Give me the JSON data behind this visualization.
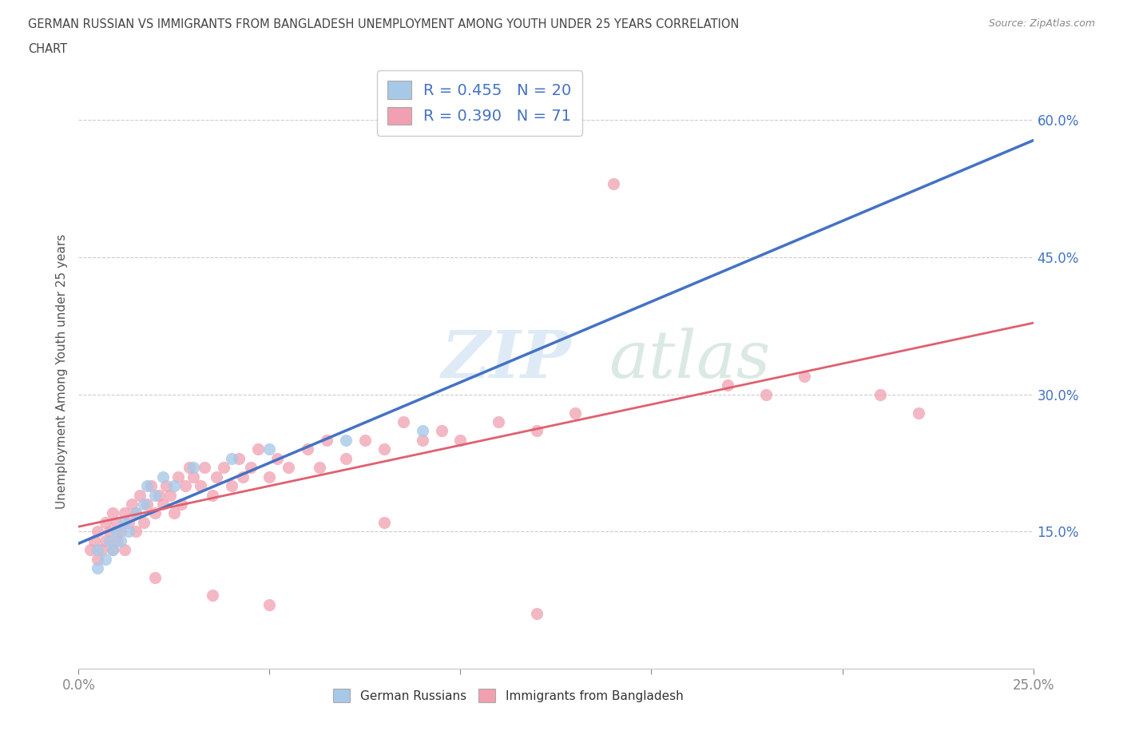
{
  "title_line1": "GERMAN RUSSIAN VS IMMIGRANTS FROM BANGLADESH UNEMPLOYMENT AMONG YOUTH UNDER 25 YEARS CORRELATION",
  "title_line2": "CHART",
  "source": "Source: ZipAtlas.com",
  "ylabel": "Unemployment Among Youth under 25 years",
  "xlim": [
    0.0,
    0.25
  ],
  "ylim": [
    0.0,
    0.65
  ],
  "xtick_positions": [
    0.0,
    0.05,
    0.1,
    0.15,
    0.2,
    0.25
  ],
  "xtick_labels": [
    "0.0%",
    "",
    "",
    "",
    "",
    "25.0%"
  ],
  "ytick_positions": [
    0.15,
    0.3,
    0.45,
    0.6
  ],
  "ytick_labels": [
    "15.0%",
    "30.0%",
    "45.0%",
    "60.0%"
  ],
  "color_blue": "#a8c8e8",
  "color_pink": "#f0a0b0",
  "color_blue_line": "#4472c4",
  "color_blue_dash": "#a0c0e0",
  "color_pink_line": "#e06070",
  "R_blue": "0.455",
  "N_blue": "20",
  "R_pink": "0.390",
  "N_pink": "71",
  "gr_x": [
    0.005,
    0.007,
    0.008,
    0.009,
    0.01,
    0.011,
    0.012,
    0.013,
    0.015,
    0.017,
    0.018,
    0.02,
    0.022,
    0.025,
    0.03,
    0.04,
    0.05,
    0.07,
    0.09,
    0.005
  ],
  "gr_y": [
    0.13,
    0.12,
    0.14,
    0.13,
    0.15,
    0.14,
    0.16,
    0.15,
    0.17,
    0.18,
    0.2,
    0.19,
    0.21,
    0.2,
    0.22,
    0.23,
    0.24,
    0.25,
    0.26,
    0.11
  ],
  "bd_x": [
    0.003,
    0.004,
    0.005,
    0.006,
    0.007,
    0.007,
    0.008,
    0.009,
    0.009,
    0.01,
    0.01,
    0.011,
    0.012,
    0.012,
    0.013,
    0.014,
    0.015,
    0.015,
    0.016,
    0.017,
    0.018,
    0.019,
    0.02,
    0.021,
    0.022,
    0.023,
    0.024,
    0.025,
    0.026,
    0.027,
    0.028,
    0.029,
    0.03,
    0.032,
    0.033,
    0.035,
    0.036,
    0.038,
    0.04,
    0.042,
    0.043,
    0.045,
    0.047,
    0.05,
    0.052,
    0.055,
    0.06,
    0.063,
    0.065,
    0.07,
    0.075,
    0.08,
    0.085,
    0.09,
    0.095,
    0.1,
    0.11,
    0.12,
    0.13,
    0.14,
    0.17,
    0.18,
    0.19,
    0.21,
    0.22,
    0.005,
    0.02,
    0.035,
    0.05,
    0.08,
    0.12
  ],
  "bd_y": [
    0.13,
    0.14,
    0.15,
    0.13,
    0.14,
    0.16,
    0.15,
    0.17,
    0.13,
    0.14,
    0.16,
    0.15,
    0.17,
    0.13,
    0.16,
    0.18,
    0.15,
    0.17,
    0.19,
    0.16,
    0.18,
    0.2,
    0.17,
    0.19,
    0.18,
    0.2,
    0.19,
    0.17,
    0.21,
    0.18,
    0.2,
    0.22,
    0.21,
    0.2,
    0.22,
    0.19,
    0.21,
    0.22,
    0.2,
    0.23,
    0.21,
    0.22,
    0.24,
    0.21,
    0.23,
    0.22,
    0.24,
    0.22,
    0.25,
    0.23,
    0.25,
    0.24,
    0.27,
    0.25,
    0.26,
    0.25,
    0.27,
    0.26,
    0.28,
    0.53,
    0.31,
    0.3,
    0.32,
    0.3,
    0.28,
    0.12,
    0.1,
    0.08,
    0.07,
    0.16,
    0.06
  ]
}
